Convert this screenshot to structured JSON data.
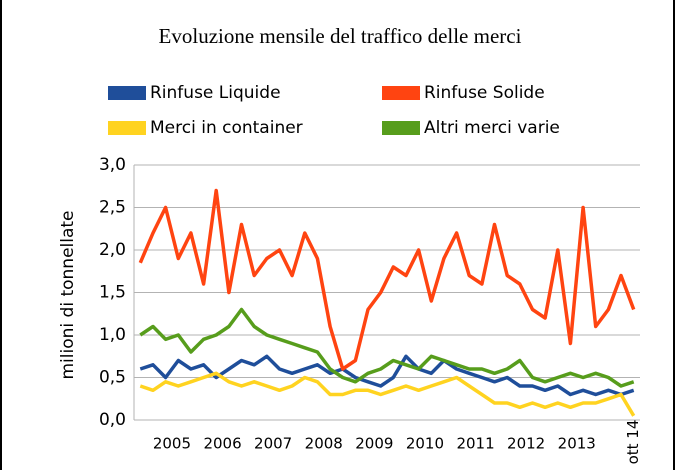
{
  "chart_data": {
    "type": "line",
    "title": "Evoluzione mensile del traffico delle merci",
    "ylabel": "milioni di tonnellate",
    "categories": [
      null,
      "2005",
      null,
      null,
      null,
      "2006",
      null,
      null,
      null,
      "2007",
      null,
      null,
      null,
      "2008",
      null,
      null,
      null,
      "2009",
      null,
      null,
      null,
      "2010",
      null,
      null,
      null,
      "2011",
      null,
      null,
      null,
      "2012",
      null,
      null,
      null,
      "2013",
      null,
      null,
      null,
      null,
      null,
      "ott 14"
    ],
    "series": [
      {
        "name": "Rinfuse Liquide",
        "color": "#1f4e9a",
        "values": [
          0.6,
          0.65,
          0.5,
          0.7,
          0.6,
          0.65,
          0.5,
          0.6,
          0.7,
          0.65,
          0.75,
          0.6,
          0.55,
          0.6,
          0.65,
          0.55,
          0.6,
          0.5,
          0.45,
          0.4,
          0.5,
          0.75,
          0.6,
          0.55,
          0.7,
          0.6,
          0.55,
          0.5,
          0.45,
          0.5,
          0.4,
          0.4,
          0.35,
          0.4,
          0.3,
          0.35,
          0.3,
          0.35,
          0.3,
          0.35
        ]
      },
      {
        "name": "Rinfuse Solide",
        "color": "#ff4411",
        "values": [
          1.85,
          2.2,
          2.5,
          1.9,
          2.2,
          1.6,
          2.7,
          1.5,
          2.3,
          1.7,
          1.9,
          2.0,
          1.7,
          2.2,
          1.9,
          1.1,
          0.6,
          0.7,
          1.3,
          1.5,
          1.8,
          1.7,
          2.0,
          1.4,
          1.9,
          2.2,
          1.7,
          1.6,
          2.3,
          1.7,
          1.6,
          1.3,
          1.2,
          2.0,
          0.9,
          2.5,
          1.1,
          1.3,
          1.7,
          1.3
        ]
      },
      {
        "name": "Merci in container",
        "color": "#ffd320",
        "values": [
          0.4,
          0.35,
          0.45,
          0.4,
          0.45,
          0.5,
          0.55,
          0.45,
          0.4,
          0.45,
          0.4,
          0.35,
          0.4,
          0.5,
          0.45,
          0.3,
          0.3,
          0.35,
          0.35,
          0.3,
          0.35,
          0.4,
          0.35,
          0.4,
          0.45,
          0.5,
          0.4,
          0.3,
          0.2,
          0.2,
          0.15,
          0.2,
          0.15,
          0.2,
          0.15,
          0.2,
          0.2,
          0.25,
          0.3,
          0.05
        ]
      },
      {
        "name": "Altri merci varie",
        "color": "#579d1c",
        "values": [
          1.0,
          1.1,
          0.95,
          1.0,
          0.8,
          0.95,
          1.0,
          1.1,
          1.3,
          1.1,
          1.0,
          0.95,
          0.9,
          0.85,
          0.8,
          0.6,
          0.5,
          0.45,
          0.55,
          0.6,
          0.7,
          0.65,
          0.6,
          0.75,
          0.7,
          0.65,
          0.6,
          0.6,
          0.55,
          0.6,
          0.7,
          0.5,
          0.45,
          0.5,
          0.55,
          0.5,
          0.55,
          0.5,
          0.4,
          0.45
        ]
      }
    ],
    "ylim": [
      0,
      3
    ],
    "yticks": [
      {
        "value": 0,
        "label": "0,0"
      },
      {
        "value": 0.5,
        "label": "0,5"
      },
      {
        "value": 1,
        "label": "1,0"
      },
      {
        "value": 1.5,
        "label": "1,5"
      },
      {
        "value": 2,
        "label": "2,0"
      },
      {
        "value": 2.5,
        "label": "2,5"
      },
      {
        "value": 3,
        "label": "3,0"
      }
    ],
    "grid": true
  }
}
